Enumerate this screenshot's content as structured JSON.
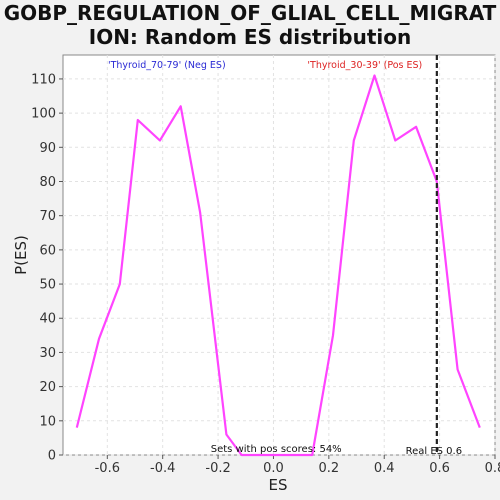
{
  "chart_data": {
    "type": "line",
    "title_line1": "GOBP_REGULATION_OF_GLIAL_CELL_MIGRAT",
    "title_line2": "ION: Random ES distribution",
    "xlabel": "ES",
    "ylabel": "P(ES)",
    "xlim": [
      -0.76,
      0.8
    ],
    "ylim": [
      0,
      117
    ],
    "x_ticks": [
      -0.6,
      -0.4,
      -0.2,
      0.0,
      0.2,
      0.4,
      0.6,
      0.8
    ],
    "x_tick_labels": [
      "-0.6",
      "-0.4",
      "-0.2",
      "0.0",
      "0.2",
      "0.4",
      "0.6",
      "0.8"
    ],
    "y_ticks": [
      0,
      10,
      20,
      30,
      40,
      50,
      60,
      70,
      80,
      90,
      100,
      110
    ],
    "y_tick_labels": [
      "0",
      "10",
      "20",
      "30",
      "40",
      "50",
      "60",
      "70",
      "80",
      "90",
      "100",
      "110"
    ],
    "grid": true,
    "series": [
      {
        "color": "#ff44ff",
        "x": [
          -0.71,
          -0.63,
          -0.555,
          -0.49,
          -0.41,
          -0.335,
          -0.265,
          -0.17,
          -0.115,
          0.14,
          0.215,
          0.29,
          0.365,
          0.44,
          0.515,
          0.59,
          0.665,
          0.745
        ],
        "y": [
          8,
          34,
          50,
          98,
          92,
          102,
          71,
          6,
          0,
          0,
          35,
          92,
          111,
          92,
          96,
          80,
          25,
          8
        ]
      }
    ],
    "reference_line": {
      "x": 0.59,
      "label": "Real ES 0.6",
      "color": "#222222"
    },
    "annotations": {
      "neg_label": "'Thyroid_70-79' (Neg ES)",
      "neg_color": "#2a2ad4",
      "pos_label": "'Thyroid_30-39' (Pos ES)",
      "pos_color": "#dd2222",
      "footnote": "Sets with pos scores: 54%"
    }
  }
}
